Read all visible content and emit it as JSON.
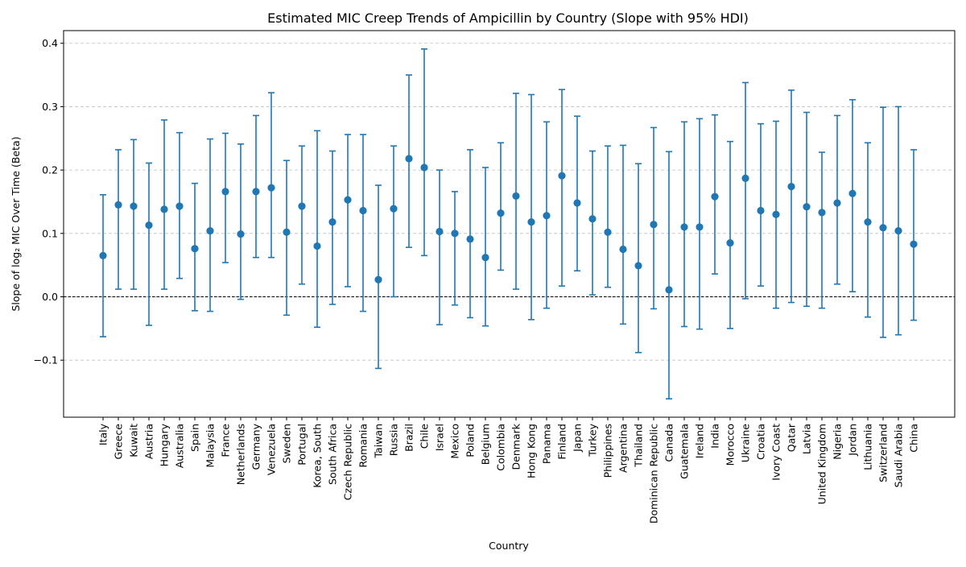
{
  "chart_data": {
    "type": "errorbar",
    "title": "Estimated MIC Creep Trends of Ampicillin by Country (Slope with 95% HDI)",
    "xlabel": "Country",
    "ylabel": "Slope of log₂ MIC Over Time (Beta)",
    "ylim": [
      -0.19,
      0.42
    ],
    "yticks": [
      -0.1,
      0.0,
      0.1,
      0.2,
      0.3,
      0.4
    ],
    "ytick_labels": [
      "−0.1",
      "0.0",
      "0.1",
      "0.2",
      "0.3",
      "0.4"
    ],
    "grid": "horizontal dashed",
    "reference_line": 0.0,
    "series_color": "#1f77b4",
    "categories": [
      "Italy",
      "Greece",
      "Kuwait",
      "Austria",
      "Hungary",
      "Australia",
      "Spain",
      "Malaysia",
      "France",
      "Netherlands",
      "Germany",
      "Venezuela",
      "Sweden",
      "Portugal",
      "Korea, South",
      "South Africa",
      "Czech Republic",
      "Romania",
      "Taiwan",
      "Russia",
      "Brazil",
      "Chile",
      "Israel",
      "Mexico",
      "Poland",
      "Belgium",
      "Colombia",
      "Denmark",
      "Hong Kong",
      "Panama",
      "Finland",
      "Japan",
      "Turkey",
      "Philippines",
      "Argentina",
      "Thailand",
      "Dominican Republic",
      "Canada",
      "Guatemala",
      "Ireland",
      "India",
      "Morocco",
      "Ukraine",
      "Croatia",
      "Ivory Coast",
      "Qatar",
      "Latvia",
      "United Kingdom",
      "Nigeria",
      "Jordan",
      "Lithuania",
      "Switzerland",
      "Saudi Arabia",
      "China"
    ],
    "values": [
      0.065,
      0.145,
      0.143,
      0.113,
      0.138,
      0.143,
      0.076,
      0.104,
      0.166,
      0.099,
      0.166,
      0.172,
      0.102,
      0.143,
      0.08,
      0.118,
      0.153,
      0.136,
      0.027,
      0.139,
      0.218,
      0.204,
      0.103,
      0.1,
      0.091,
      0.062,
      0.132,
      0.159,
      0.118,
      0.128,
      0.191,
      0.148,
      0.123,
      0.102,
      0.075,
      0.049,
      0.114,
      0.011,
      0.11,
      0.11,
      0.158,
      0.085,
      0.187,
      0.136,
      0.13,
      0.174,
      0.142,
      0.133,
      0.148,
      0.163,
      0.118,
      0.109,
      0.104,
      0.083
    ],
    "lower": [
      -0.063,
      0.012,
      0.012,
      -0.045,
      0.012,
      0.029,
      -0.022,
      -0.023,
      0.054,
      -0.004,
      0.062,
      0.062,
      -0.029,
      0.02,
      -0.048,
      -0.012,
      0.016,
      -0.023,
      -0.113,
      0.0,
      0.078,
      0.065,
      -0.044,
      -0.013,
      -0.033,
      -0.046,
      0.042,
      0.012,
      -0.036,
      -0.018,
      0.017,
      0.041,
      0.003,
      0.015,
      -0.043,
      -0.088,
      -0.019,
      -0.161,
      -0.047,
      -0.051,
      0.036,
      -0.05,
      -0.003,
      0.017,
      -0.018,
      -0.009,
      -0.015,
      -0.018,
      0.02,
      0.008,
      -0.032,
      -0.064,
      -0.06,
      -0.037
    ],
    "upper": [
      0.161,
      0.232,
      0.248,
      0.211,
      0.279,
      0.259,
      0.179,
      0.249,
      0.258,
      0.241,
      0.286,
      0.322,
      0.215,
      0.238,
      0.262,
      0.23,
      0.256,
      0.256,
      0.176,
      0.238,
      0.35,
      0.391,
      0.2,
      0.166,
      0.232,
      0.204,
      0.243,
      0.321,
      0.319,
      0.276,
      0.327,
      0.285,
      0.23,
      0.238,
      0.239,
      0.21,
      0.267,
      0.229,
      0.276,
      0.281,
      0.287,
      0.245,
      0.338,
      0.273,
      0.277,
      0.326,
      0.291,
      0.228,
      0.286,
      0.311,
      0.243,
      0.299,
      0.3,
      0.232
    ]
  }
}
